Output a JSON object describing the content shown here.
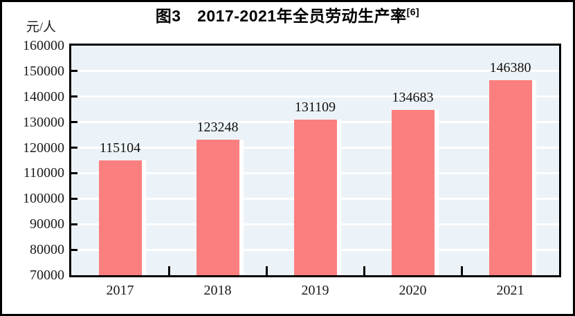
{
  "figure": {
    "title": "图3　2017-2021年全员劳动生产率",
    "title_superscript": "[6]",
    "unit_label": "元/人"
  },
  "chart_data": {
    "type": "bar",
    "title": "图3　2017-2021年全员劳动生产率[6]",
    "categories": [
      "2017",
      "2018",
      "2019",
      "2020",
      "2021"
    ],
    "values": [
      115104,
      123248,
      131109,
      134683,
      146380
    ],
    "data_labels": [
      "115104",
      "123248",
      "131109",
      "134683",
      "146380"
    ],
    "xlabel": "",
    "ylabel": "元/人",
    "ylim": [
      70000,
      160000
    ],
    "ytick_interval": 10000,
    "ytick_labels": [
      "160000",
      "150000",
      "140000",
      "130000",
      "120000",
      "110000",
      "100000",
      "90000",
      "80000",
      "70000"
    ],
    "grid": "horizontal-white-on-tinted-background",
    "legend_position": "none",
    "colors": {
      "bar": "#fc7f7f",
      "bar_right_highlight": "#ffffff",
      "plot_background": "#ecf3f8",
      "gridline": "#ffffff",
      "axis": "#000000",
      "text": "#1a1a1a",
      "frame_border": "#000000",
      "page_background": "#ffffff"
    }
  }
}
